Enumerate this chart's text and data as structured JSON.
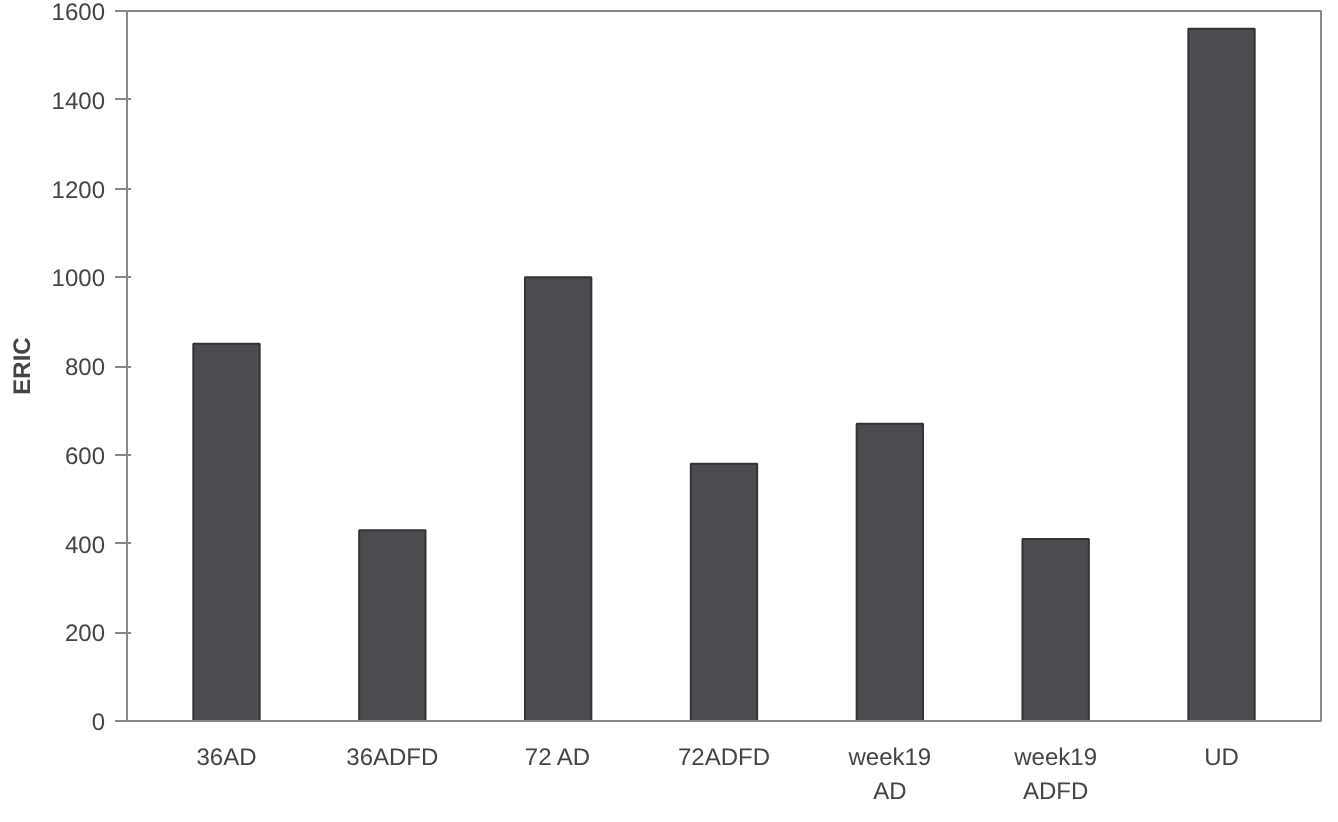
{
  "chart_data": {
    "type": "bar",
    "ylabel": "ERIC",
    "categories": [
      "36AD",
      "36ADFD",
      "72 AD",
      "72ADFD",
      "week19\nAD",
      "week19\nADFD",
      "UD"
    ],
    "values": [
      850,
      430,
      1000,
      580,
      670,
      410,
      1560
    ],
    "color": "#4a4c50",
    "ylim": [
      0,
      1600
    ],
    "yticks": [
      0,
      200,
      400,
      600,
      800,
      1000,
      1200,
      1400,
      1600
    ]
  }
}
